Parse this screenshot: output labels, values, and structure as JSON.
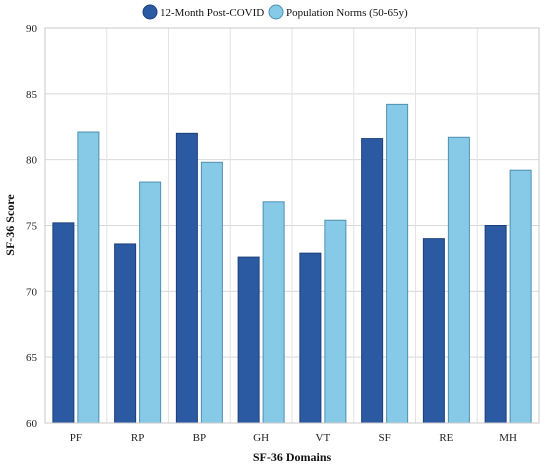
{
  "chart_data": {
    "type": "bar",
    "title": "",
    "xlabel": "SF-36 Domains",
    "ylabel": "SF-36 Score",
    "ylim": [
      60,
      90
    ],
    "yticks": [
      60,
      65,
      70,
      75,
      80,
      85,
      90
    ],
    "grid": true,
    "legend_position": "top",
    "categories": [
      "PF",
      "RP",
      "BP",
      "GH",
      "VT",
      "SF",
      "RE",
      "MH"
    ],
    "series": [
      {
        "name": "12-Month Post-COVID",
        "color": "#2b5aa3",
        "stroke": "#1c3f7a",
        "values": [
          75.2,
          73.6,
          82.0,
          72.6,
          72.9,
          81.6,
          74.0,
          75.0
        ]
      },
      {
        "name": "Population Norms (50-65y)",
        "color": "#86cae8",
        "stroke": "#4f8fb0",
        "values": [
          82.1,
          78.3,
          79.8,
          76.8,
          75.4,
          84.2,
          81.7,
          79.2
        ]
      }
    ]
  }
}
